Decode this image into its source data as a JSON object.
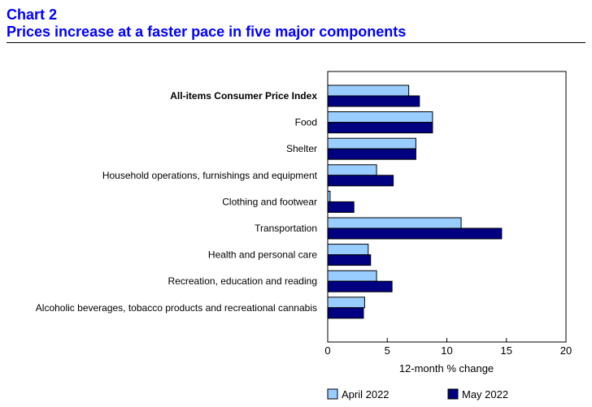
{
  "header": {
    "chart_number": "Chart 2",
    "title": "Prices increase at a faster pace in five major components"
  },
  "colors": {
    "title": "#0000ff",
    "april": "#99ccff",
    "may": "#000080"
  },
  "chart_data": {
    "type": "bar",
    "orientation": "horizontal",
    "title": "Prices increase at a faster pace in five major components",
    "categories": [
      "All-items Consumer Price Index",
      "Food",
      "Shelter",
      "Household operations, furnishings and equipment",
      "Clothing and footwear",
      "Transportation",
      "Health and personal care",
      "Recreation, education and reading",
      "Alcoholic beverages, tobacco products and recreational cannabis"
    ],
    "bold_categories": [
      "All-items Consumer Price Index"
    ],
    "series": [
      {
        "name": "April 2022",
        "values": [
          6.8,
          8.8,
          7.4,
          4.1,
          0.2,
          11.2,
          3.4,
          4.1,
          3.1
        ]
      },
      {
        "name": "May 2022",
        "values": [
          7.7,
          8.8,
          7.4,
          5.5,
          2.2,
          14.6,
          3.6,
          5.4,
          3.0
        ]
      }
    ],
    "xlabel": "12-month % change",
    "ylabel": "",
    "xlim": [
      0,
      20
    ],
    "xticks": [
      0,
      5,
      10,
      15,
      20
    ],
    "grid": false,
    "legend_position": "bottom"
  }
}
